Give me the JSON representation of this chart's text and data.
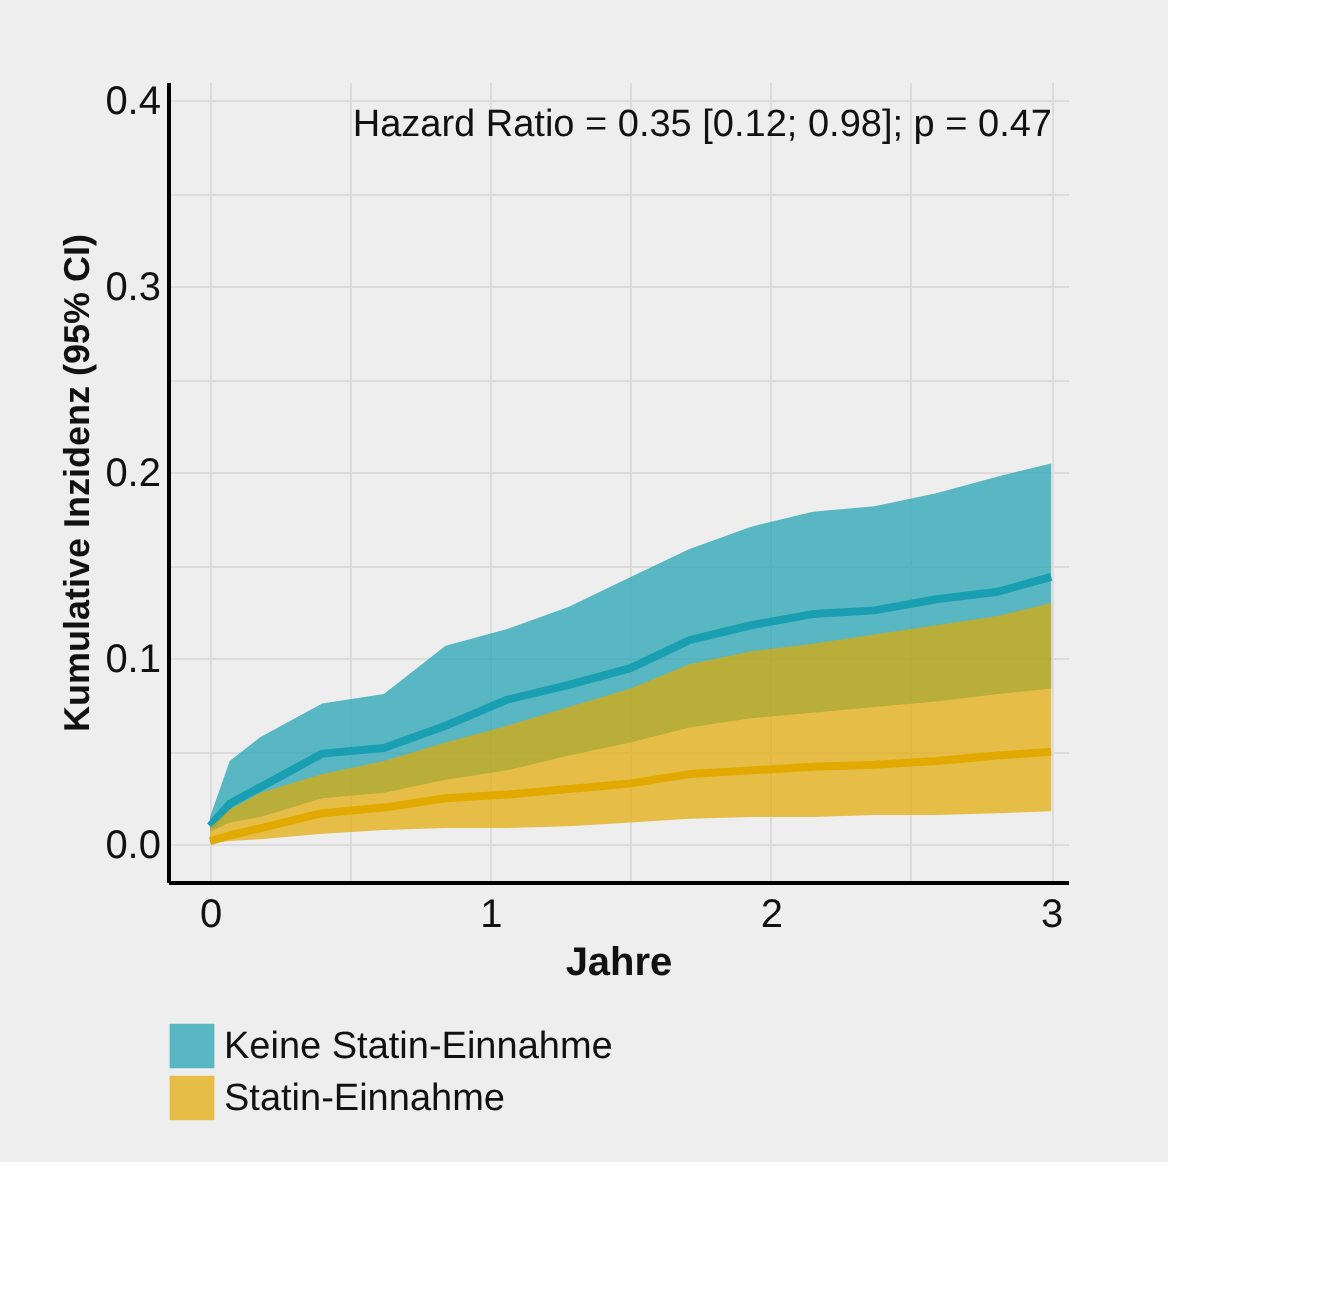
{
  "chart_data": {
    "type": "line",
    "xlabel": "Jahre",
    "ylabel": "Kumulative Inzidenz (95% CI)",
    "annotations": [
      "Hazard Ratio = 0.35 [0.12; 0.98]; p = 0.47"
    ],
    "xlim": [
      -0.15,
      3.06
    ],
    "ylim": [
      -0.02,
      0.41
    ],
    "xticks": [
      0,
      {
        "value": 0.5,
        "label": null
      },
      1,
      {
        "value": 1.5,
        "label": null
      },
      2,
      {
        "value": 2.5,
        "label": null
      },
      3
    ],
    "yticks": [
      {
        "value": 0,
        "label": "0.0"
      },
      {
        "value": 0.05,
        "label": null
      },
      0.1,
      {
        "value": 0.15,
        "label": null
      },
      0.2,
      {
        "value": 0.25,
        "label": null
      },
      0.3,
      {
        "value": 0.35,
        "label": null
      },
      0.4
    ],
    "grid": true,
    "legend": "bottom",
    "marker": "none",
    "line_style": "solid",
    "series": [
      {
        "name": "Keine Statin-Einnahme",
        "color": "#1a9fb2",
        "x": [
          0,
          0.07,
          0.18,
          0.4,
          0.62,
          0.84,
          1.06,
          1.28,
          1.5,
          1.71,
          1.93,
          2.15,
          2.37,
          2.59,
          2.81,
          3.0
        ],
        "values": [
          0.01,
          0.022,
          0.031,
          0.049,
          0.052,
          0.064,
          0.078,
          0.086,
          0.095,
          0.11,
          0.118,
          0.124,
          0.126,
          0.132,
          0.136,
          0.144
        ],
        "lower": [
          0.007,
          0.012,
          0.015,
          0.025,
          0.028,
          0.035,
          0.04,
          0.048,
          0.055,
          0.063,
          0.068,
          0.071,
          0.074,
          0.077,
          0.081,
          0.084
        ],
        "upper": [
          0.015,
          0.045,
          0.058,
          0.076,
          0.081,
          0.107,
          0.116,
          0.128,
          0.144,
          0.159,
          0.171,
          0.179,
          0.182,
          0.189,
          0.198,
          0.205
        ]
      },
      {
        "name": "Statin-Einnahme",
        "color": "#e2a900",
        "x": [
          0,
          0.07,
          0.18,
          0.4,
          0.62,
          0.84,
          1.06,
          1.28,
          1.5,
          1.71,
          1.93,
          2.15,
          2.37,
          2.59,
          2.81,
          3.0
        ],
        "values": [
          0.002,
          0.005,
          0.009,
          0.017,
          0.02,
          0.025,
          0.027,
          0.03,
          0.033,
          0.038,
          0.04,
          0.042,
          0.043,
          0.045,
          0.048,
          0.05
        ],
        "lower": [
          0.001,
          0.002,
          0.003,
          0.006,
          0.008,
          0.009,
          0.009,
          0.01,
          0.012,
          0.014,
          0.015,
          0.015,
          0.016,
          0.016,
          0.017,
          0.018
        ],
        "upper": [
          0.009,
          0.019,
          0.028,
          0.038,
          0.045,
          0.055,
          0.064,
          0.074,
          0.084,
          0.097,
          0.104,
          0.108,
          0.113,
          0.118,
          0.123,
          0.13
        ]
      }
    ]
  }
}
